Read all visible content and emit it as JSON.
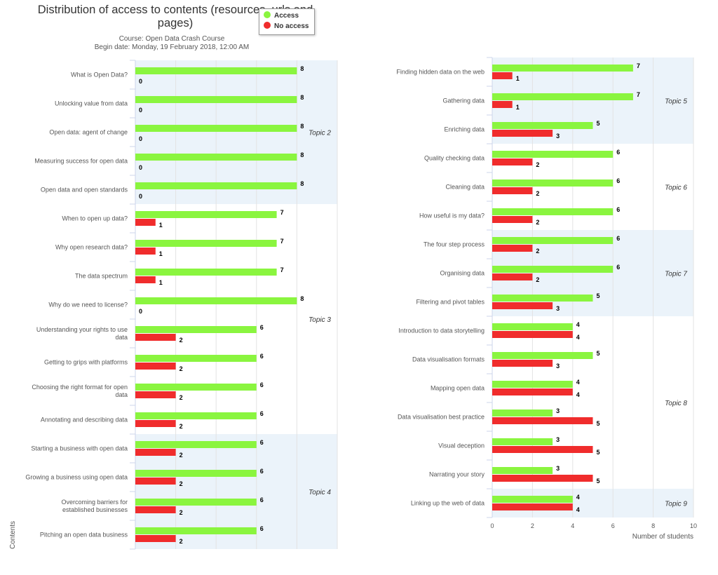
{
  "header": {
    "title_line1": "Distribution of access to contents (resources, urls and",
    "title_line2": "pages)",
    "subtitle_line1": "Course: Open Data Crash Course",
    "subtitle_line2": "Begin date: Monday, 19 February 2018, 12:00 AM"
  },
  "legend": {
    "access": "Access",
    "no_access": "No access"
  },
  "colors": {
    "access": "#8af53f",
    "no_access": "#f02c2c",
    "band": "#ebf3fa"
  },
  "chart_data": [
    {
      "type": "bar",
      "orientation": "horizontal",
      "ylabel": "Contents",
      "series_names": [
        "Access",
        "No access"
      ],
      "xlim": [
        0,
        10
      ],
      "groups": [
        {
          "name": "Topic 2",
          "start": 0,
          "end": 4
        },
        {
          "name": "Topic 3",
          "start": 5,
          "end": 12
        },
        {
          "name": "Topic 4",
          "start": 13,
          "end": 16
        }
      ],
      "items": [
        {
          "label": "What is Open Data?",
          "access": 8,
          "no_access": 0
        },
        {
          "label": "Unlocking value from data",
          "access": 8,
          "no_access": 0
        },
        {
          "label": "Open data: agent of change",
          "access": 8,
          "no_access": 0
        },
        {
          "label": "Measuring success for open data",
          "access": 8,
          "no_access": 0
        },
        {
          "label": "Open data and open standards",
          "access": 8,
          "no_access": 0
        },
        {
          "label": "When to open up data?",
          "access": 7,
          "no_access": 1
        },
        {
          "label": "Why open research data?",
          "access": 7,
          "no_access": 1
        },
        {
          "label": "The data spectrum",
          "access": 7,
          "no_access": 1
        },
        {
          "label": "Why do we need to license?",
          "access": 8,
          "no_access": 0
        },
        {
          "label": "Understanding your rights to use data",
          "access": 6,
          "no_access": 2
        },
        {
          "label": "Getting to grips with platforms",
          "access": 6,
          "no_access": 2
        },
        {
          "label": "Choosing the right format for open data",
          "access": 6,
          "no_access": 2
        },
        {
          "label": "Annotating and describing data",
          "access": 6,
          "no_access": 2
        },
        {
          "label": "Starting a business with open data",
          "access": 6,
          "no_access": 2
        },
        {
          "label": "Growing a business using open data",
          "access": 6,
          "no_access": 2
        },
        {
          "label": "Overcoming barriers for established businesses",
          "access": 6,
          "no_access": 2
        },
        {
          "label": "Pitching an open data business",
          "access": 6,
          "no_access": 2
        }
      ]
    },
    {
      "type": "bar",
      "orientation": "horizontal",
      "xlabel": "Number of students",
      "series_names": [
        "Access",
        "No access"
      ],
      "xlim": [
        0,
        10
      ],
      "xticks": [
        0,
        2,
        4,
        6,
        8,
        10
      ],
      "groups": [
        {
          "name": "Topic 5",
          "start": 0,
          "end": 2
        },
        {
          "name": "Topic 6",
          "start": 3,
          "end": 5
        },
        {
          "name": "Topic 7",
          "start": 6,
          "end": 8
        },
        {
          "name": "Topic 8",
          "start": 9,
          "end": 14
        },
        {
          "name": "Topic 9",
          "start": 15,
          "end": 15
        }
      ],
      "items": [
        {
          "label": "Finding hidden data on the web",
          "access": 7,
          "no_access": 1
        },
        {
          "label": "Gathering data",
          "access": 7,
          "no_access": 1
        },
        {
          "label": "Enriching data",
          "access": 5,
          "no_access": 3
        },
        {
          "label": "Quality checking data",
          "access": 6,
          "no_access": 2
        },
        {
          "label": "Cleaning data",
          "access": 6,
          "no_access": 2
        },
        {
          "label": "How useful is my data?",
          "access": 6,
          "no_access": 2
        },
        {
          "label": "The four step process",
          "access": 6,
          "no_access": 2
        },
        {
          "label": "Organising data",
          "access": 6,
          "no_access": 2
        },
        {
          "label": "Filtering and pivot tables",
          "access": 5,
          "no_access": 3
        },
        {
          "label": "Introduction to data storytelling",
          "access": 4,
          "no_access": 4
        },
        {
          "label": "Data visualisation formats",
          "access": 5,
          "no_access": 3
        },
        {
          "label": "Mapping open data",
          "access": 4,
          "no_access": 4
        },
        {
          "label": "Data visualisation best practice",
          "access": 3,
          "no_access": 5
        },
        {
          "label": "Visual deception",
          "access": 3,
          "no_access": 5
        },
        {
          "label": "Narrating your story",
          "access": 3,
          "no_access": 5
        },
        {
          "label": "Linking up the web of data",
          "access": 4,
          "no_access": 4
        }
      ]
    }
  ]
}
